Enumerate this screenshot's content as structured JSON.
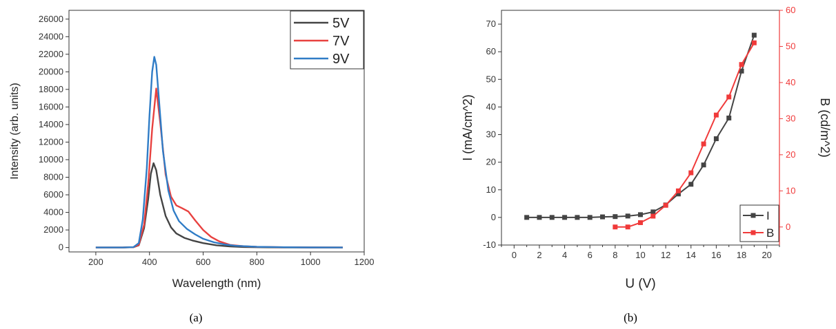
{
  "captions": [
    "(a)",
    "(b)"
  ],
  "chart_data": [
    {
      "type": "line",
      "title": "",
      "xlabel": "Wavelength (nm)",
      "ylabel": "Intensity (arb. units)",
      "xlim": [
        100,
        1200
      ],
      "ylim": [
        -500,
        27000
      ],
      "xticks": [
        200,
        400,
        600,
        800,
        1000,
        1200
      ],
      "yticks": [
        0,
        2000,
        4000,
        6000,
        8000,
        10000,
        12000,
        14000,
        16000,
        18000,
        20000,
        22000,
        24000,
        26000
      ],
      "grid": false,
      "legend": "top-right",
      "series": [
        {
          "name": "5V",
          "color": "#444444",
          "x": [
            200,
            300,
            340,
            360,
            380,
            395,
            405,
            415,
            425,
            440,
            460,
            480,
            500,
            530,
            560,
            600,
            650,
            700,
            750,
            800,
            900,
            1000,
            1120
          ],
          "y": [
            0,
            0,
            30,
            250,
            2200,
            5500,
            8400,
            9600,
            8800,
            6000,
            3600,
            2300,
            1600,
            1100,
            800,
            500,
            250,
            120,
            60,
            30,
            10,
            5,
            0
          ]
        },
        {
          "name": "7V",
          "color": "#e8413f",
          "x": [
            200,
            300,
            340,
            360,
            380,
            395,
            410,
            425,
            440,
            460,
            480,
            500,
            520,
            545,
            570,
            600,
            630,
            660,
            700,
            750,
            800,
            900,
            1000,
            1120
          ],
          "y": [
            0,
            0,
            30,
            300,
            2600,
            7200,
            13500,
            18100,
            14200,
            8300,
            5800,
            4800,
            4500,
            4100,
            3100,
            2000,
            1200,
            700,
            300,
            150,
            80,
            30,
            10,
            0
          ]
        },
        {
          "name": "9V",
          "color": "#2f7cc6",
          "x": [
            200,
            300,
            340,
            360,
            375,
            390,
            400,
            410,
            418,
            425,
            435,
            450,
            470,
            490,
            510,
            540,
            570,
            600,
            640,
            680,
            720,
            800,
            900,
            1000,
            1120
          ],
          "y": [
            0,
            0,
            40,
            500,
            3200,
            9000,
            15000,
            20000,
            21700,
            20800,
            17000,
            11000,
            6500,
            4200,
            3000,
            2100,
            1500,
            1000,
            600,
            350,
            200,
            80,
            30,
            10,
            0
          ]
        }
      ]
    },
    {
      "type": "line",
      "title": "",
      "xlabel": "U (V)",
      "ylabel": "I (mA/cm^2)",
      "ylabel_right": "B (cd/m^2)",
      "xlim": [
        -1,
        21
      ],
      "ylim": [
        -10,
        75
      ],
      "ylim_right": [
        -5,
        60
      ],
      "xticks": [
        0,
        2,
        4,
        6,
        8,
        10,
        12,
        14,
        16,
        18,
        20
      ],
      "yticks": [
        -10,
        0,
        10,
        20,
        30,
        40,
        50,
        60,
        70
      ],
      "yticks_right": [
        0,
        10,
        20,
        30,
        40,
        50,
        60
      ],
      "grid": false,
      "legend": "bottom-right",
      "marker": "square",
      "series": [
        {
          "name": "I",
          "axis": "left",
          "color": "#444444",
          "x": [
            1,
            2,
            3,
            4,
            5,
            6,
            7,
            8,
            9,
            10,
            11,
            12,
            13,
            14,
            15,
            16,
            17,
            18,
            19
          ],
          "y": [
            0,
            0,
            0,
            0,
            0,
            0,
            0.2,
            0.3,
            0.5,
            1.0,
            2.0,
            4.5,
            8.5,
            12,
            19,
            28.5,
            36,
            53,
            66
          ]
        },
        {
          "name": "B",
          "axis": "right",
          "color": "#f03a3a",
          "x": [
            8,
            9,
            10,
            11,
            12,
            13,
            14,
            15,
            16,
            17,
            18,
            19
          ],
          "y": [
            0,
            0,
            1.2,
            3,
            6,
            10,
            15,
            23,
            31,
            36,
            45,
            51
          ]
        }
      ]
    }
  ]
}
